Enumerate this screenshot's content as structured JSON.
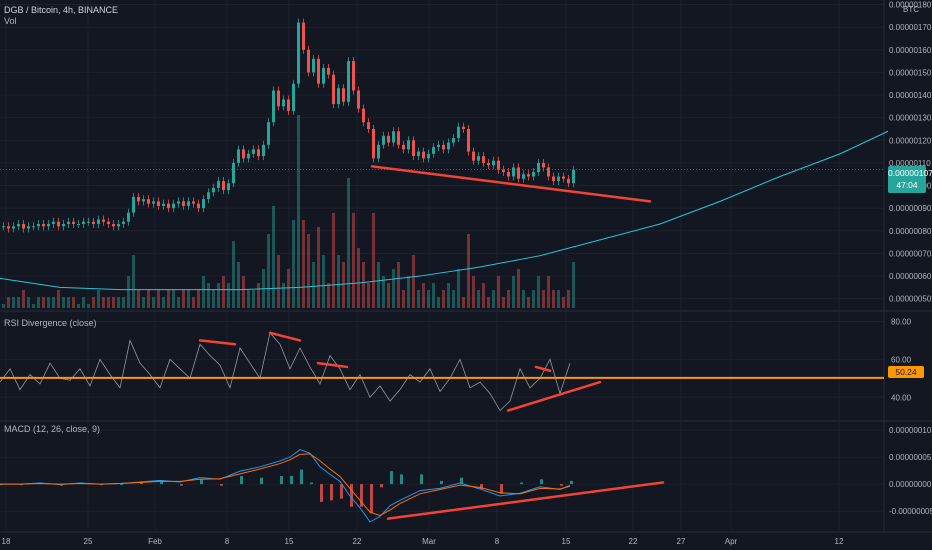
{
  "header": {
    "title": "DGB / Bitcoin, 4h, BINANCE",
    "vol_label": "Vol",
    "currency": "BTC"
  },
  "indicators": {
    "rsi_label": "RSI Divergence (close)",
    "macd_label": "MACD (12, 26, close, 9)"
  },
  "price_badge": {
    "value": "0.00000107",
    "countdown": "47:04"
  },
  "rsi_badge": {
    "value": "50.24"
  },
  "colors": {
    "up": "#26a69a",
    "down": "#ef5350",
    "ma": "#2196f3",
    "trend": "#f44336",
    "rsi_level": "#ff9800",
    "macd": "#2196f3",
    "signal": "#ff6d00"
  },
  "chart_data": {
    "type": "line",
    "price_axis": {
      "ticks": [
        "0.00000180",
        "0.00000170",
        "0.00000160",
        "0.00000150",
        "0.00000140",
        "0.00000130",
        "0.00000120",
        "0.00000110",
        "0.00000100",
        "0.00000090",
        "0.00000080",
        "0.00000070",
        "0.00000060",
        "0.00000050"
      ],
      "range": [
        4.5e-07,
        1.82e-06
      ]
    },
    "rsi_axis": {
      "ticks": [
        "80.00",
        "60.00",
        "40.00"
      ],
      "range": [
        28,
        85
      ]
    },
    "macd_axis": {
      "ticks": [
        "0.00000010",
        "0.00000005",
        "0.00000000",
        "-0.00000005"
      ],
      "range": [
        -8.5e-08,
        1.15e-07
      ]
    },
    "x_ticks": [
      "18",
      "25",
      "Feb",
      "8",
      "15",
      "22",
      "Mar",
      "8",
      "15",
      "22",
      "27",
      "Apr",
      "12"
    ],
    "price_series": {
      "x": [
        0,
        5,
        10,
        15,
        20,
        25,
        30,
        35,
        40,
        45,
        50,
        55,
        60,
        65,
        70,
        75,
        80,
        85,
        90,
        95,
        100,
        105,
        110,
        115,
        120,
        125,
        130,
        135,
        140,
        145,
        150,
        155,
        160,
        165,
        170,
        175,
        180,
        185,
        190,
        195,
        200,
        205,
        210,
        215,
        220,
        225,
        230,
        235,
        240,
        245,
        250,
        255,
        260,
        265,
        270,
        275,
        280,
        285,
        290,
        295,
        300,
        305,
        310,
        315,
        320,
        325,
        330,
        335,
        340,
        345,
        350,
        355,
        360,
        365,
        370,
        375,
        380,
        385,
        390,
        395,
        400,
        405,
        410,
        415,
        420,
        425,
        430,
        435,
        440,
        445,
        450,
        455,
        460,
        465,
        470,
        475,
        480,
        485,
        490,
        495,
        500,
        505,
        510,
        515,
        520,
        525,
        530,
        535,
        540,
        545,
        550,
        555,
        560,
        565,
        570
      ],
      "close": [
        8.2e-07,
        8.1e-07,
        8.2e-07,
        8.3e-07,
        8.1e-07,
        8.2e-07,
        8.2e-07,
        8.3e-07,
        8.2e-07,
        8.3e-07,
        8.4e-07,
        8.2e-07,
        8.3e-07,
        8.4e-07,
        8.3e-07,
        8.3e-07,
        8.4e-07,
        8.4e-07,
        8.3e-07,
        8.5e-07,
        8.4e-07,
        8.3e-07,
        8.2e-07,
        8.3e-07,
        8.4e-07,
        8.8e-07,
        9.5e-07,
        9.3e-07,
        9.4e-07,
        9.2e-07,
        9.3e-07,
        9.1e-07,
        9.2e-07,
        9e-07,
        9.2e-07,
        9.3e-07,
        9.1e-07,
        9.3e-07,
        9.2e-07,
        9e-07,
        9.4e-07,
        9.7e-07,
        9.9e-07,
        1.02e-06,
        9.8e-07,
        1.01e-06,
        1.1e-06,
        1.16e-06,
        1.12e-06,
        1.14e-06,
        1.16e-06,
        1.13e-06,
        1.18e-06,
        1.28e-06,
        1.42e-06,
        1.35e-06,
        1.38e-06,
        1.33e-06,
        1.45e-06,
        1.72e-06,
        1.6e-06,
        1.5e-06,
        1.56e-06,
        1.45e-06,
        1.52e-06,
        1.49e-06,
        1.36e-06,
        1.43e-06,
        1.37e-06,
        1.55e-06,
        1.42e-06,
        1.34e-06,
        1.28e-06,
        1.25e-06,
        1.12e-06,
        1.18e-06,
        1.22e-06,
        1.19e-06,
        1.24e-06,
        1.18e-06,
        1.16e-06,
        1.2e-06,
        1.13e-06,
        1.15e-06,
        1.12e-06,
        1.14e-06,
        1.17e-06,
        1.18e-06,
        1.16e-06,
        1.19e-06,
        1.21e-06,
        1.26e-06,
        1.25e-06,
        1.15e-06,
        1.11e-06,
        1.13e-06,
        1.1e-06,
        1.09e-06,
        1.11e-06,
        1.07e-06,
        1.06e-06,
        1.04e-06,
        1.08e-06,
        1.03e-06,
        1.05e-06,
        1.04e-06,
        1.06e-06,
        1.1e-06,
        1.08e-06,
        1.04e-06,
        1.02e-06,
        1.04e-06,
        1.03e-06,
        1.01e-06,
        1.07e-06
      ]
    },
    "ma_series": {
      "x": [
        0,
        60,
        120,
        180,
        240,
        300,
        360,
        420,
        480,
        540,
        600,
        660,
        720,
        780,
        840,
        888
      ],
      "values": [
        5.9e-07,
        5.5e-07,
        5.4e-07,
        5.4e-07,
        5.4e-07,
        5.5e-07,
        5.7e-07,
        6e-07,
        6.4e-07,
        6.9e-07,
        7.6e-07,
        8.3e-07,
        9.3e-07,
        1.04e-06,
        1.14e-06,
        1.24e-06
      ]
    },
    "rsi_series": {
      "x": [
        0,
        10,
        20,
        30,
        40,
        50,
        60,
        70,
        80,
        90,
        100,
        110,
        120,
        130,
        140,
        150,
        160,
        170,
        180,
        190,
        200,
        210,
        220,
        230,
        240,
        250,
        260,
        270,
        280,
        290,
        300,
        310,
        320,
        330,
        340,
        350,
        360,
        370,
        380,
        390,
        400,
        410,
        420,
        430,
        440,
        450,
        460,
        470,
        480,
        490,
        500,
        510,
        520,
        530,
        540,
        550,
        560,
        570
      ],
      "values": [
        48,
        55,
        44,
        52,
        47,
        58,
        50,
        49,
        55,
        46,
        60,
        52,
        45,
        70,
        58,
        52,
        45,
        60,
        55,
        50,
        68,
        62,
        57,
        45,
        66,
        58,
        50,
        74,
        68,
        55,
        66,
        56,
        47,
        62,
        55,
        44,
        52,
        40,
        46,
        38,
        44,
        52,
        48,
        55,
        43,
        50,
        60,
        45,
        48,
        42,
        33,
        38,
        55,
        45,
        50,
        60,
        42,
        58
      ]
    },
    "rsi_level": 50.24,
    "macd_series": {
      "x": [
        0,
        20,
        40,
        60,
        80,
        100,
        120,
        140,
        160,
        180,
        200,
        220,
        240,
        260,
        280,
        290,
        300,
        310,
        320,
        330,
        340,
        350,
        360,
        370,
        380,
        390,
        400,
        420,
        440,
        460,
        480,
        500,
        520,
        540,
        560,
        570
      ],
      "macd": [
        0,
        0,
        2e-09,
        -1e-09,
        2e-09,
        0,
        1e-09,
        4e-09,
        7e-09,
        4e-09,
        1.2e-08,
        9e-09,
        2.4e-08,
        3.2e-08,
        4.3e-08,
        5e-08,
        6.4e-08,
        5.7e-08,
        3.2e-08,
        1.8e-08,
        5e-09,
        -2.2e-08,
        -4.4e-08,
        -7e-08,
        -6e-08,
        -4e-08,
        -3e-08,
        -1.2e-08,
        -8e-09,
        2e-09,
        -9e-09,
        -2.2e-08,
        -1.7e-08,
        -5e-09,
        -1e-08,
        -2e-09
      ],
      "signal": [
        0,
        0,
        1e-09,
        0,
        1e-09,
        0,
        1e-09,
        3e-09,
        5e-09,
        5e-09,
        9e-09,
        1e-08,
        1.9e-08,
        2.8e-08,
        3.8e-08,
        4.5e-08,
        5.5e-08,
        5.6e-08,
        4.3e-08,
        2.8e-08,
        1.4e-08,
        -8e-09,
        -3e-08,
        -5.2e-08,
        -5.8e-08,
        -4.8e-08,
        -3.6e-08,
        -1.8e-08,
        -1e-08,
        -2e-09,
        -6e-09,
        -1.6e-08,
        -1.8e-08,
        -8e-09,
        -9e-09,
        -4e-09
      ]
    },
    "trendlines": [
      {
        "pane": "price",
        "from": [
          372,
          1.085e-06
        ],
        "to": [
          650,
          9.3e-07
        ]
      },
      {
        "pane": "rsi",
        "from": [
          200,
          70
        ],
        "to": [
          235,
          68
        ]
      },
      {
        "pane": "rsi",
        "from": [
          270,
          74
        ],
        "to": [
          300,
          70
        ]
      },
      {
        "pane": "rsi",
        "from": [
          318,
          58
        ],
        "to": [
          347,
          56
        ]
      },
      {
        "pane": "rsi",
        "from": [
          536,
          56
        ],
        "to": [
          550,
          54
        ]
      },
      {
        "pane": "rsi",
        "from": [
          508,
          33
        ],
        "to": [
          600,
          48
        ]
      },
      {
        "pane": "macd",
        "from": [
          388,
          -6.4e-08
        ],
        "to": [
          663,
          3e-09
        ]
      }
    ]
  }
}
